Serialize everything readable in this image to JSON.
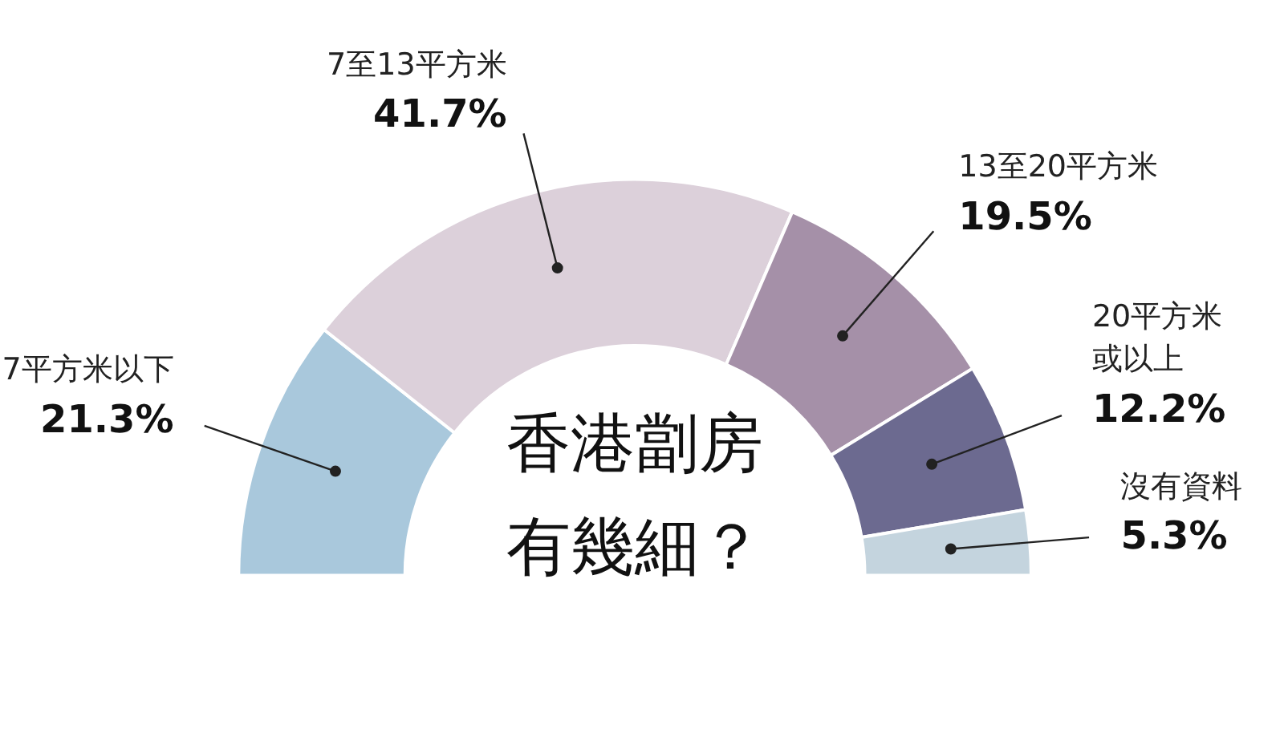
{
  "chart_data": {
    "type": "donut",
    "title": "香港劏房有幾細？",
    "categories": [
      "7平方米以下",
      "7至13平方米",
      "13至20平方米",
      "20平方米或以上",
      "沒有資料"
    ],
    "values": [
      21.3,
      41.7,
      19.5,
      12.2,
      5.3
    ],
    "value_labels": [
      "21.3%",
      "41.7%",
      "19.5%",
      "12.2%",
      "5.3%"
    ],
    "colors": [
      "#a9c8dc",
      "#dcd0da",
      "#a590a8",
      "#6c6a90",
      "#c4d4de"
    ]
  }
}
